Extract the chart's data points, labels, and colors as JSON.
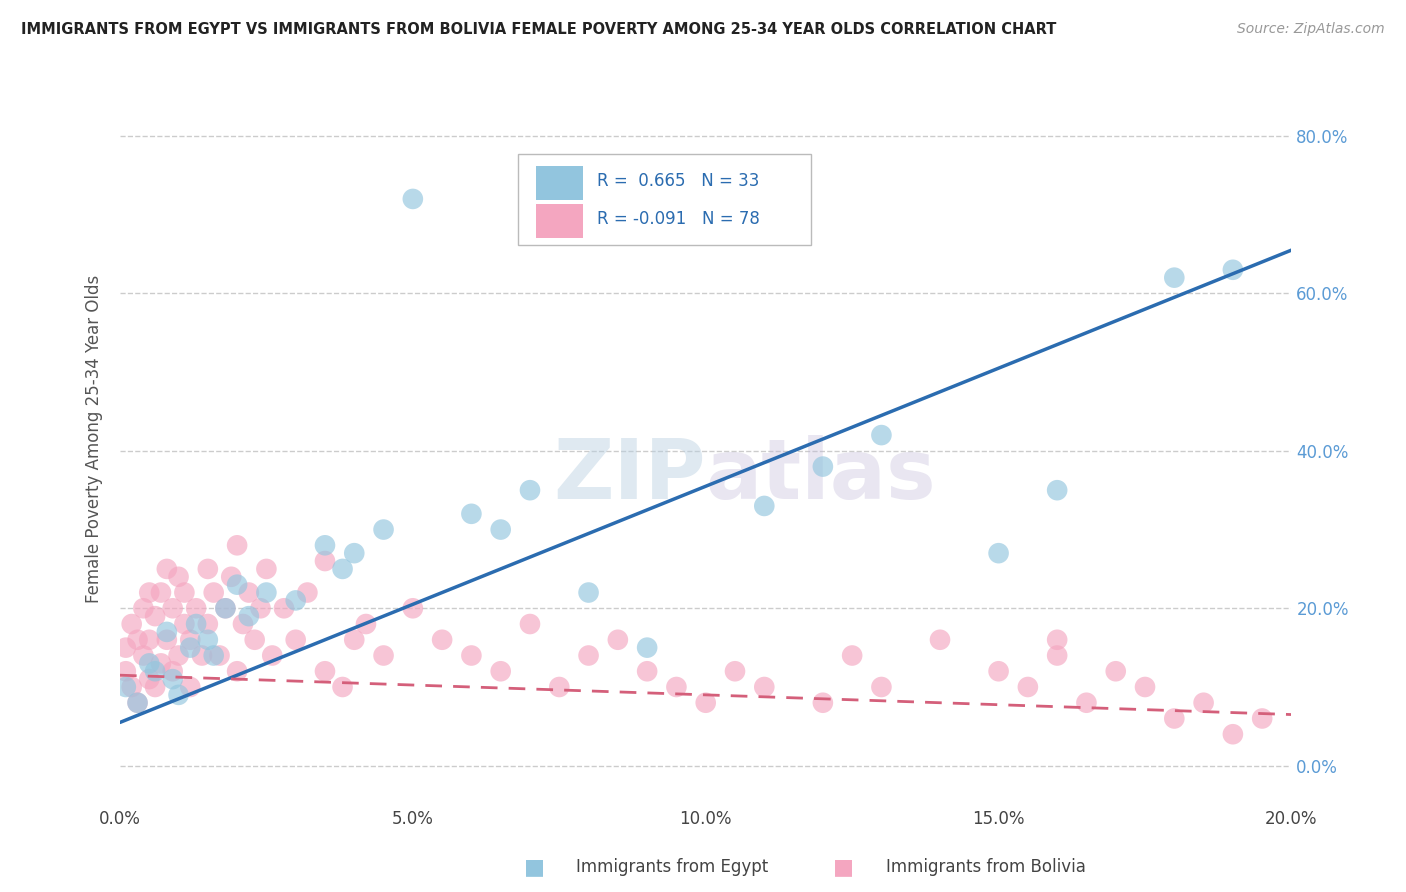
{
  "title": "IMMIGRANTS FROM EGYPT VS IMMIGRANTS FROM BOLIVIA FEMALE POVERTY AMONG 25-34 YEAR OLDS CORRELATION CHART",
  "source": "Source: ZipAtlas.com",
  "ylabel": "Female Poverty Among 25-34 Year Olds",
  "xlim": [
    0.0,
    0.2
  ],
  "ylim": [
    -0.05,
    0.88
  ],
  "xticks": [
    0.0,
    0.05,
    0.1,
    0.15,
    0.2
  ],
  "yticks": [
    0.0,
    0.2,
    0.4,
    0.6,
    0.8
  ],
  "xtick_labels": [
    "0.0%",
    "5.0%",
    "10.0%",
    "15.0%",
    "20.0%"
  ],
  "ytick_labels": [
    "0.0%",
    "20.0%",
    "40.0%",
    "60.0%",
    "80.0%"
  ],
  "egypt_color": "#92c5de",
  "bolivia_color": "#f4a6c0",
  "egypt_line_color": "#2b6cb0",
  "bolivia_line_color": "#d45f7a",
  "legend_egypt_R": "0.665",
  "legend_egypt_N": "33",
  "legend_bolivia_R": "-0.091",
  "legend_bolivia_N": "78",
  "watermark": "ZIPatlas",
  "egypt_scatter_x": [
    0.001,
    0.003,
    0.005,
    0.006,
    0.008,
    0.009,
    0.01,
    0.012,
    0.013,
    0.015,
    0.016,
    0.018,
    0.02,
    0.022,
    0.025,
    0.03,
    0.035,
    0.038,
    0.04,
    0.045,
    0.05,
    0.06,
    0.065,
    0.07,
    0.08,
    0.09,
    0.11,
    0.12,
    0.13,
    0.15,
    0.16,
    0.18,
    0.19
  ],
  "egypt_scatter_y": [
    0.1,
    0.08,
    0.13,
    0.12,
    0.17,
    0.11,
    0.09,
    0.15,
    0.18,
    0.16,
    0.14,
    0.2,
    0.23,
    0.19,
    0.22,
    0.21,
    0.28,
    0.25,
    0.27,
    0.3,
    0.72,
    0.32,
    0.3,
    0.35,
    0.22,
    0.15,
    0.33,
    0.38,
    0.42,
    0.27,
    0.35,
    0.62,
    0.63
  ],
  "bolivia_scatter_x": [
    0.001,
    0.001,
    0.002,
    0.002,
    0.003,
    0.003,
    0.004,
    0.004,
    0.005,
    0.005,
    0.005,
    0.006,
    0.006,
    0.007,
    0.007,
    0.008,
    0.008,
    0.009,
    0.009,
    0.01,
    0.01,
    0.011,
    0.011,
    0.012,
    0.012,
    0.013,
    0.014,
    0.015,
    0.015,
    0.016,
    0.017,
    0.018,
    0.019,
    0.02,
    0.02,
    0.021,
    0.022,
    0.023,
    0.024,
    0.025,
    0.026,
    0.028,
    0.03,
    0.032,
    0.035,
    0.035,
    0.038,
    0.04,
    0.042,
    0.045,
    0.05,
    0.055,
    0.06,
    0.065,
    0.07,
    0.075,
    0.08,
    0.085,
    0.09,
    0.095,
    0.1,
    0.105,
    0.11,
    0.12,
    0.125,
    0.13,
    0.14,
    0.15,
    0.155,
    0.16,
    0.16,
    0.165,
    0.17,
    0.175,
    0.18,
    0.185,
    0.19,
    0.195
  ],
  "bolivia_scatter_y": [
    0.12,
    0.15,
    0.1,
    0.18,
    0.08,
    0.16,
    0.14,
    0.2,
    0.11,
    0.16,
    0.22,
    0.1,
    0.19,
    0.13,
    0.22,
    0.16,
    0.25,
    0.12,
    0.2,
    0.14,
    0.24,
    0.18,
    0.22,
    0.1,
    0.16,
    0.2,
    0.14,
    0.25,
    0.18,
    0.22,
    0.14,
    0.2,
    0.24,
    0.12,
    0.28,
    0.18,
    0.22,
    0.16,
    0.2,
    0.25,
    0.14,
    0.2,
    0.16,
    0.22,
    0.12,
    0.26,
    0.1,
    0.16,
    0.18,
    0.14,
    0.2,
    0.16,
    0.14,
    0.12,
    0.18,
    0.1,
    0.14,
    0.16,
    0.12,
    0.1,
    0.08,
    0.12,
    0.1,
    0.08,
    0.14,
    0.1,
    0.16,
    0.12,
    0.1,
    0.16,
    0.14,
    0.08,
    0.12,
    0.1,
    0.06,
    0.08,
    0.04,
    0.06
  ],
  "egypt_line_x0": 0.0,
  "egypt_line_y0": 0.055,
  "egypt_line_x1": 0.2,
  "egypt_line_y1": 0.655,
  "bolivia_line_x0": 0.0,
  "bolivia_line_y0": 0.115,
  "bolivia_line_x1": 0.2,
  "bolivia_line_y1": 0.065
}
